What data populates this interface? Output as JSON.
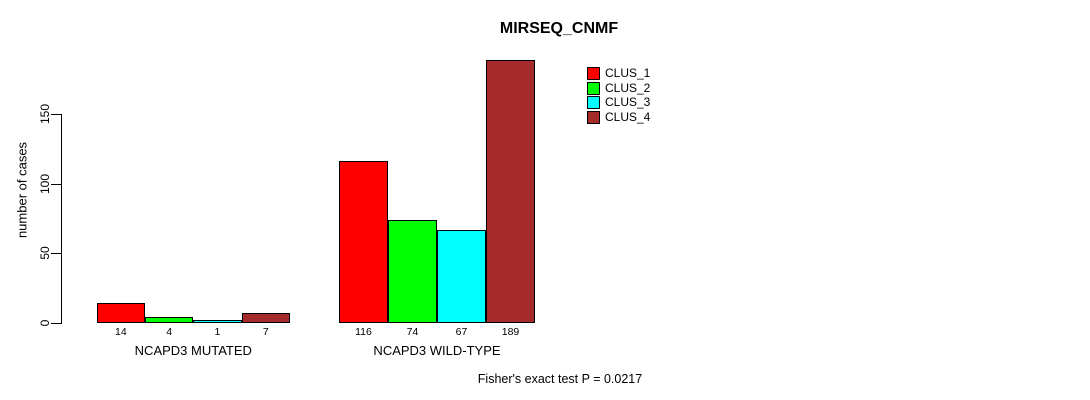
{
  "title": "MIRSEQ_CNMF",
  "footer": "Fisher's exact test P = 0.0217",
  "chart_data": {
    "type": "bar",
    "title": "MIRSEQ_CNMF",
    "xlabel": "",
    "ylabel": "number of cases",
    "yticks": [
      0,
      50,
      100,
      150
    ],
    "ylim": [
      0,
      189
    ],
    "grid": false,
    "legend_position": "top-right",
    "series": [
      {
        "name": "CLUS_1",
        "color": "#ff0000"
      },
      {
        "name": "CLUS_2",
        "color": "#00ff00"
      },
      {
        "name": "CLUS_3",
        "color": "#00ffff"
      },
      {
        "name": "CLUS_4",
        "color": "#a52a2a"
      }
    ],
    "groups": [
      {
        "label": "NCAPD3 MUTATED",
        "values": [
          14,
          4,
          1,
          7
        ]
      },
      {
        "label": "NCAPD3 WILD-TYPE",
        "values": [
          116,
          74,
          67,
          189
        ]
      }
    ],
    "bar_value_labels": [
      [
        14,
        4,
        1,
        7
      ],
      [
        116,
        74,
        67,
        189
      ]
    ],
    "annotation": "Fisher's exact test P = 0.0217"
  }
}
